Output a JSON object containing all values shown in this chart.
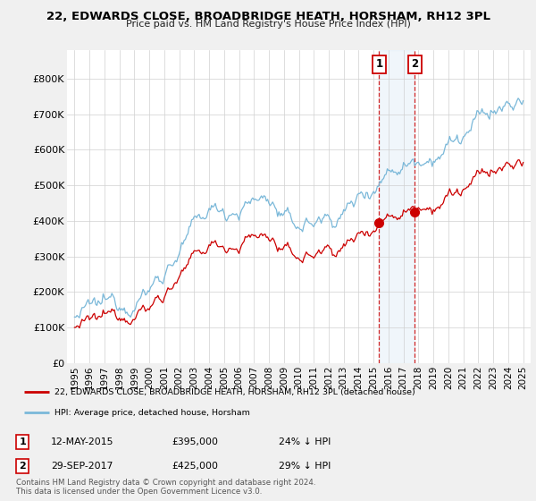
{
  "title": "22, EDWARDS CLOSE, BROADBRIDGE HEATH, HORSHAM, RH12 3PL",
  "subtitle": "Price paid vs. HM Land Registry's House Price Index (HPI)",
  "legend_line1": "22, EDWARDS CLOSE, BROADBRIDGE HEATH, HORSHAM, RH12 3PL (detached house)",
  "legend_line2": "HPI: Average price, detached house, Horsham",
  "transaction1_date": "12-MAY-2015",
  "transaction1_price": "£395,000",
  "transaction1_hpi": "24% ↓ HPI",
  "transaction1_year": 2015.37,
  "transaction1_value": 395000,
  "transaction2_date": "29-SEP-2017",
  "transaction2_price": "£425,000",
  "transaction2_hpi": "29% ↓ HPI",
  "transaction2_year": 2017.75,
  "transaction2_value": 425000,
  "hpi_color": "#7ab8d9",
  "price_color": "#cc0000",
  "marker_color": "#cc0000",
  "vline_color": "#cc0000",
  "highlight_fill": "#d6e8f5",
  "background_color": "#f0f0f0",
  "plot_bg_color": "#ffffff",
  "ylim_min": 0,
  "ylim_max": 880000,
  "xlim_min": 1994.5,
  "xlim_max": 2025.5,
  "yticks": [
    0,
    100000,
    200000,
    300000,
    400000,
    500000,
    600000,
    700000,
    800000
  ],
  "ytick_labels": [
    "£0",
    "£100K",
    "£200K",
    "£300K",
    "£400K",
    "£500K",
    "£600K",
    "£700K",
    "£800K"
  ],
  "xticks": [
    1995,
    1996,
    1997,
    1998,
    1999,
    2000,
    2001,
    2002,
    2003,
    2004,
    2005,
    2006,
    2007,
    2008,
    2009,
    2010,
    2011,
    2012,
    2013,
    2014,
    2015,
    2016,
    2017,
    2018,
    2019,
    2020,
    2021,
    2022,
    2023,
    2024,
    2025
  ],
  "copyright_text": "Contains HM Land Registry data © Crown copyright and database right 2024.\nThis data is licensed under the Open Government Licence v3.0."
}
